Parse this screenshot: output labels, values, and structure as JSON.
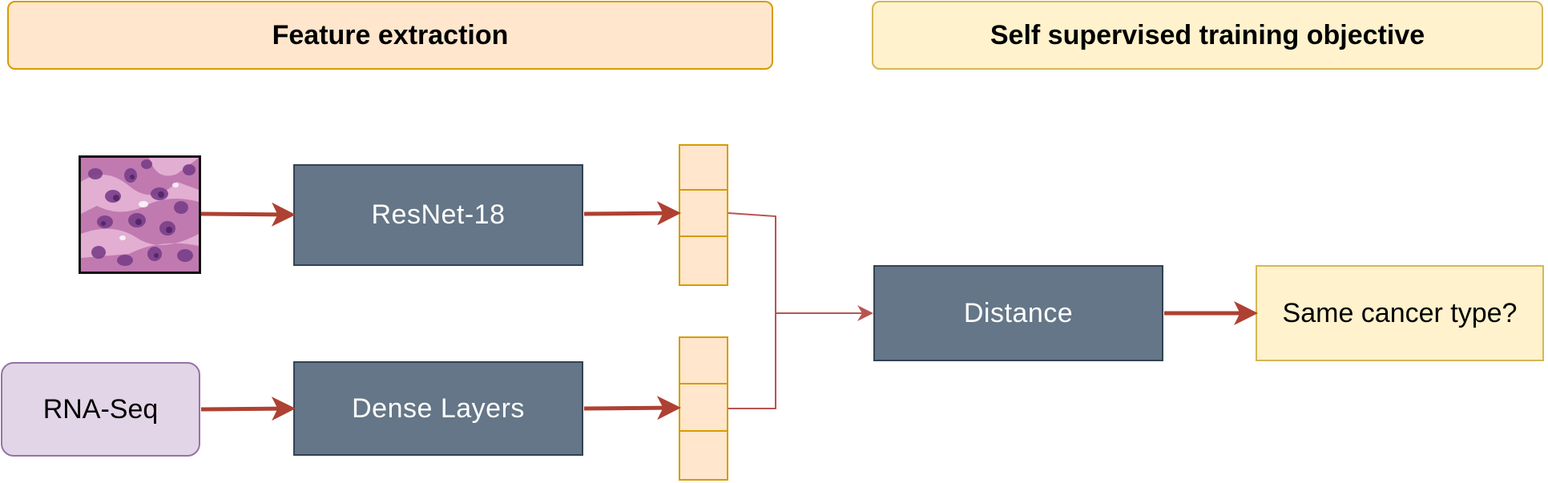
{
  "headers": {
    "feature_extraction": "Feature extraction",
    "training_objective": "Self supervised training objective"
  },
  "inputs": {
    "histology_image": "histology-tile",
    "rna_seq": "RNA-Seq"
  },
  "encoders": {
    "image_encoder": "ResNet-18",
    "rna_encoder": "Dense Layers"
  },
  "objective": {
    "distance": "Distance",
    "output": "Same cancer type?"
  },
  "colors": {
    "orange_fill": "#ffe6cc",
    "orange_stroke": "#d79b00",
    "yellow_fill": "#fff2cc",
    "yellow_stroke": "#d6b656",
    "block_fill": "#647687",
    "block_stroke": "#314354",
    "purple_fill": "#e1d5e7",
    "purple_stroke": "#9673a6",
    "arrow": "#ae4132",
    "thin_line": "#b85450"
  }
}
